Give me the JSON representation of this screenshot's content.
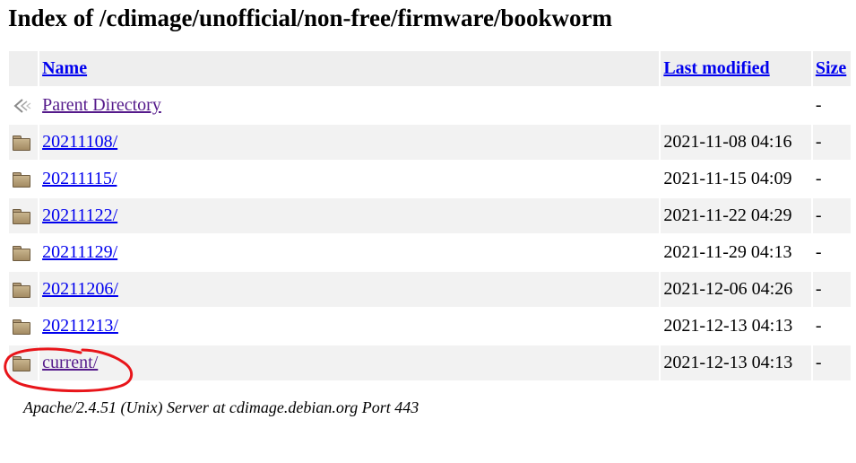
{
  "page": {
    "title": "Index of /cdimage/unofficial/non-free/firmware/bookworm"
  },
  "table": {
    "headers": {
      "name": "Name",
      "last_modified": "Last modified",
      "size": "Size"
    },
    "rows": [
      {
        "icon": "back-icon",
        "name": "Parent Directory",
        "modified": "",
        "size": "-"
      },
      {
        "icon": "folder-icon",
        "name": "20211108/",
        "modified": "2021-11-08 04:16",
        "size": "-"
      },
      {
        "icon": "folder-icon",
        "name": "20211115/",
        "modified": "2021-11-15 04:09",
        "size": "-"
      },
      {
        "icon": "folder-icon",
        "name": "20211122/",
        "modified": "2021-11-22 04:29",
        "size": "-"
      },
      {
        "icon": "folder-icon",
        "name": "20211129/",
        "modified": "2021-11-29 04:13",
        "size": "-"
      },
      {
        "icon": "folder-icon",
        "name": "20211206/",
        "modified": "2021-12-06 04:26",
        "size": "-"
      },
      {
        "icon": "folder-icon",
        "name": "20211213/",
        "modified": "2021-12-13 04:13",
        "size": "-"
      },
      {
        "icon": "folder-icon",
        "name": "current/",
        "modified": "2021-12-13 04:13",
        "size": "-"
      }
    ]
  },
  "footer": {
    "server": "Apache/2.4.51 (Unix) Server at cdimage.debian.org Port 443"
  },
  "colors": {
    "link": "#0000ee",
    "visited_link": "#551a8b",
    "annotation": "#e8151a"
  }
}
